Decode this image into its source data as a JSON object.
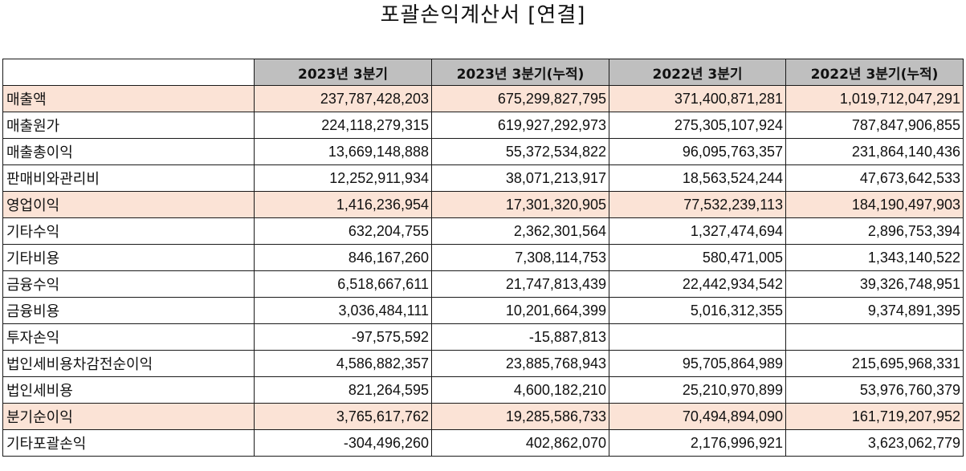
{
  "title": "포괄손익계산서 [연결]",
  "columns": [
    "",
    "2023년 3분기",
    "2023년 3분기(누적)",
    "2022년 3분기",
    "2022년 3분기(누적)"
  ],
  "highlight_color": "#fbe3d6",
  "header_color": "#bfbfbf",
  "rows": [
    {
      "label": "매출액",
      "values": [
        "237,787,428,203",
        "675,299,827,795",
        "371,400,871,281",
        "1,019,712,047,291"
      ],
      "highlight": true
    },
    {
      "label": "매출원가",
      "values": [
        "224,118,279,315",
        "619,927,292,973",
        "275,305,107,924",
        "787,847,906,855"
      ],
      "highlight": false
    },
    {
      "label": "매출총이익",
      "values": [
        "13,669,148,888",
        "55,372,534,822",
        "96,095,763,357",
        "231,864,140,436"
      ],
      "highlight": false
    },
    {
      "label": "판매비와관리비",
      "values": [
        "12,252,911,934",
        "38,071,213,917",
        "18,563,524,244",
        "47,673,642,533"
      ],
      "highlight": false
    },
    {
      "label": "영업이익",
      "values": [
        "1,416,236,954",
        "17,301,320,905",
        "77,532,239,113",
        "184,190,497,903"
      ],
      "highlight": true
    },
    {
      "label": "기타수익",
      "values": [
        "632,204,755",
        "2,362,301,564",
        "1,327,474,694",
        "2,896,753,394"
      ],
      "highlight": false
    },
    {
      "label": "기타비용",
      "values": [
        "846,167,260",
        "7,308,114,753",
        "580,471,005",
        "1,343,140,522"
      ],
      "highlight": false
    },
    {
      "label": "금융수익",
      "values": [
        "6,518,667,611",
        "21,747,813,439",
        "22,442,934,542",
        "39,326,748,951"
      ],
      "highlight": false
    },
    {
      "label": "금융비용",
      "values": [
        "3,036,484,111",
        "10,201,664,399",
        "5,016,312,355",
        "9,374,891,395"
      ],
      "highlight": false
    },
    {
      "label": "투자손익",
      "values": [
        "-97,575,592",
        "-15,887,813",
        "",
        ""
      ],
      "highlight": false
    },
    {
      "label": "법인세비용차감전순이익",
      "values": [
        "4,586,882,357",
        "23,885,768,943",
        "95,705,864,989",
        "215,695,968,331"
      ],
      "highlight": false
    },
    {
      "label": "법인세비용",
      "values": [
        "821,264,595",
        "4,600,182,210",
        "25,210,970,899",
        "53,976,760,379"
      ],
      "highlight": false
    },
    {
      "label": "분기순이익",
      "values": [
        "3,765,617,762",
        "19,285,586,733",
        "70,494,894,090",
        "161,719,207,952"
      ],
      "highlight": true
    },
    {
      "label": "기타포괄손익",
      "values": [
        "-304,496,260",
        "402,862,070",
        "2,176,996,921",
        "3,623,062,779"
      ],
      "highlight": false
    }
  ]
}
